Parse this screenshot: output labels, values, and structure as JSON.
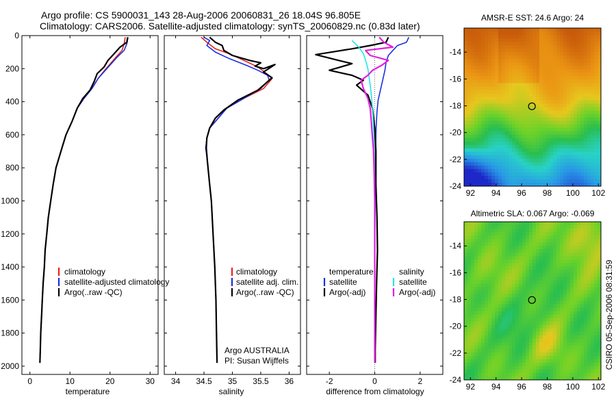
{
  "header": {
    "line1": "Argo profile: CS 5900031_143 28-Aug-2006 20060831_26 18.04S 96.805E",
    "line2": "Climatology: CARS2006. Satellite-adjusted climatology: synTS_20060829.nc (0.83d later)"
  },
  "side_credit": "CSIRO 05-Sep-2006 08:31:59",
  "colors": {
    "climatology": "#e8201a",
    "satellite": "#1a2ee0",
    "argo": "#000000",
    "sat_diff": "#22e4e6",
    "argo_diff": "#e21ee0"
  },
  "chart_data": [
    {
      "type": "line",
      "xlabel": "temperature",
      "xlim": [
        -2,
        32
      ],
      "ylim": [
        0,
        2050
      ],
      "y_inverted": true,
      "x_ticks": [
        "0",
        "10",
        "20",
        "30"
      ],
      "y_ticks": [
        "0",
        "200",
        "400",
        "600",
        "800",
        "1000",
        "1200",
        "1400",
        "1600",
        "1800",
        "2000"
      ],
      "legend": [
        "climatology",
        "satellite-adjusted climatology",
        "Argo(..raw -QC)"
      ],
      "series": [
        {
          "name": "climatology",
          "color": "#e8201a",
          "points": [
            [
              23.8,
              10
            ],
            [
              23.5,
              50
            ],
            [
              23.0,
              90
            ],
            [
              21.5,
              130
            ],
            [
              19.0,
              200
            ],
            [
              17.0,
              260
            ],
            [
              15.5,
              320
            ],
            [
              13.5,
              380
            ],
            [
              11.8,
              440
            ],
            [
              10.5,
              520
            ],
            [
              9.0,
              600
            ],
            [
              8.0,
              680
            ],
            [
              6.5,
              800
            ],
            [
              5.8,
              900
            ],
            [
              5.2,
              1000
            ],
            [
              4.6,
              1100
            ],
            [
              4.2,
              1200
            ],
            [
              3.8,
              1300
            ],
            [
              3.6,
              1400
            ],
            [
              3.3,
              1500
            ],
            [
              3.1,
              1600
            ],
            [
              2.9,
              1700
            ],
            [
              2.7,
              1800
            ],
            [
              2.6,
              1900
            ],
            [
              2.5,
              1980
            ]
          ]
        },
        {
          "name": "satellite-adjusted climatology",
          "color": "#1a2ee0",
          "points": [
            [
              24.5,
              10
            ],
            [
              24.2,
              50
            ],
            [
              23.5,
              90
            ],
            [
              21.8,
              130
            ],
            [
              19.2,
              200
            ],
            [
              17.0,
              260
            ],
            [
              15.5,
              320
            ],
            [
              13.5,
              380
            ],
            [
              11.8,
              440
            ],
            [
              10.5,
              520
            ],
            [
              9.0,
              600
            ],
            [
              8.0,
              680
            ],
            [
              6.5,
              800
            ],
            [
              5.8,
              900
            ],
            [
              5.2,
              1000
            ],
            [
              4.6,
              1100
            ],
            [
              4.2,
              1200
            ],
            [
              3.8,
              1300
            ],
            [
              3.6,
              1400
            ],
            [
              3.3,
              1500
            ],
            [
              3.1,
              1600
            ],
            [
              2.9,
              1700
            ],
            [
              2.7,
              1800
            ],
            [
              2.6,
              1900
            ],
            [
              2.5,
              1980
            ]
          ]
        },
        {
          "name": "Argo(..raw -QC)",
          "color": "#000000",
          "points": [
            [
              24.4,
              10
            ],
            [
              24.2,
              40
            ],
            [
              22.5,
              70
            ],
            [
              21.0,
              110
            ],
            [
              19.5,
              150
            ],
            [
              18.5,
              190
            ],
            [
              16.8,
              230
            ],
            [
              16.0,
              280
            ],
            [
              15.0,
              330
            ],
            [
              13.2,
              380
            ],
            [
              11.8,
              440
            ],
            [
              10.5,
              520
            ],
            [
              9.0,
              600
            ],
            [
              8.0,
              680
            ],
            [
              6.5,
              800
            ],
            [
              5.8,
              900
            ],
            [
              5.2,
              1000
            ],
            [
              4.6,
              1100
            ],
            [
              4.2,
              1200
            ],
            [
              3.8,
              1300
            ],
            [
              3.6,
              1400
            ],
            [
              3.3,
              1500
            ],
            [
              3.1,
              1600
            ],
            [
              2.9,
              1700
            ],
            [
              2.7,
              1800
            ],
            [
              2.6,
              1900
            ],
            [
              2.5,
              1980
            ]
          ]
        }
      ]
    },
    {
      "type": "line",
      "xlabel": "salinity",
      "xlim": [
        33.8,
        36.2
      ],
      "ylim": [
        0,
        2050
      ],
      "y_inverted": true,
      "x_ticks": [
        "34",
        "34.5",
        "35",
        "35.5",
        "36"
      ],
      "y_ticks": [],
      "legend": [
        "climatology",
        "satellite adj. clim.",
        "Argo(..raw -QC)"
      ],
      "annotation": [
        "Argo AUSTRALIA",
        "PI: Susan Wijffels"
      ],
      "series": [
        {
          "name": "climatology",
          "color": "#e8201a",
          "points": [
            [
              34.45,
              10
            ],
            [
              34.55,
              40
            ],
            [
              34.7,
              80
            ],
            [
              34.95,
              110
            ],
            [
              35.2,
              150
            ],
            [
              35.45,
              190
            ],
            [
              35.6,
              230
            ],
            [
              35.7,
              260
            ],
            [
              35.55,
              320
            ],
            [
              35.2,
              380
            ],
            [
              34.9,
              440
            ],
            [
              34.75,
              500
            ],
            [
              34.6,
              560
            ],
            [
              34.55,
              620
            ],
            [
              34.54,
              680
            ],
            [
              34.56,
              760
            ],
            [
              34.6,
              900
            ],
            [
              34.63,
              1000
            ],
            [
              34.66,
              1200
            ],
            [
              34.69,
              1400
            ],
            [
              34.71,
              1600
            ],
            [
              34.72,
              1800
            ],
            [
              34.73,
              1980
            ]
          ]
        },
        {
          "name": "satellite adj. clim.",
          "color": "#1a2ee0",
          "points": [
            [
              34.5,
              10
            ],
            [
              34.6,
              30
            ],
            [
              34.55,
              60
            ],
            [
              34.7,
              100
            ],
            [
              34.95,
              140
            ],
            [
              35.25,
              180
            ],
            [
              35.45,
              210
            ],
            [
              35.62,
              240
            ],
            [
              35.65,
              270
            ],
            [
              35.5,
              320
            ],
            [
              35.2,
              380
            ],
            [
              34.9,
              440
            ],
            [
              34.75,
              500
            ],
            [
              34.6,
              560
            ],
            [
              34.55,
              620
            ],
            [
              34.53,
              680
            ],
            [
              34.56,
              760
            ],
            [
              34.6,
              900
            ],
            [
              34.63,
              1000
            ],
            [
              34.66,
              1200
            ],
            [
              34.69,
              1400
            ],
            [
              34.71,
              1600
            ],
            [
              34.72,
              1800
            ],
            [
              34.73,
              1980
            ]
          ]
        },
        {
          "name": "Argo(..raw -QC)",
          "color": "#000000",
          "points": [
            [
              34.6,
              10
            ],
            [
              34.7,
              40
            ],
            [
              34.82,
              60
            ],
            [
              34.85,
              90
            ],
            [
              35.0,
              120
            ],
            [
              35.3,
              150
            ],
            [
              35.5,
              165
            ],
            [
              35.4,
              185
            ],
            [
              35.55,
              200
            ],
            [
              35.75,
              175
            ],
            [
              35.55,
              220
            ],
            [
              35.7,
              255
            ],
            [
              35.45,
              330
            ],
            [
              35.1,
              390
            ],
            [
              34.85,
              450
            ],
            [
              34.7,
              500
            ],
            [
              34.6,
              560
            ],
            [
              34.55,
              620
            ],
            [
              34.54,
              680
            ],
            [
              34.56,
              760
            ],
            [
              34.6,
              900
            ],
            [
              34.63,
              1000
            ],
            [
              34.66,
              1200
            ],
            [
              34.69,
              1400
            ],
            [
              34.71,
              1600
            ],
            [
              34.72,
              1800
            ],
            [
              34.73,
              1980
            ]
          ]
        }
      ]
    },
    {
      "type": "line",
      "xlabel": "difference from climatology",
      "xlim": [
        -3,
        3
      ],
      "ylim": [
        0,
        2050
      ],
      "y_inverted": true,
      "x_ticks": [
        "-2",
        "0",
        "2"
      ],
      "y_ticks": [],
      "legend_header": [
        "temperature",
        "salinity"
      ],
      "legend": [
        "satellite",
        "Argo(-adj)",
        "satellite",
        "Argo(-adj)"
      ],
      "series": [
        {
          "name": "satellite",
          "color": "#1a2ee0",
          "points": [
            [
              1.5,
              10
            ],
            [
              1.4,
              40
            ],
            [
              1.0,
              60
            ],
            [
              0.8,
              90
            ],
            [
              0.6,
              120
            ],
            [
              0.5,
              160
            ],
            [
              0.45,
              210
            ],
            [
              0.35,
              270
            ],
            [
              0.25,
              330
            ],
            [
              0.15,
              390
            ],
            [
              0.1,
              460
            ],
            [
              0.06,
              560
            ],
            [
              0.04,
              700
            ],
            [
              0.02,
              900
            ],
            [
              0.01,
              1200
            ],
            [
              0.0,
              1600
            ],
            [
              0.0,
              1980
            ]
          ]
        },
        {
          "name": "Argo(-adj)",
          "color": "#000000",
          "points": [
            [
              0.6,
              10
            ],
            [
              0.5,
              40
            ],
            [
              -0.2,
              60
            ],
            [
              -1.0,
              80
            ],
            [
              -2.6,
              115
            ],
            [
              -1.6,
              150
            ],
            [
              -1.0,
              170
            ],
            [
              -2.0,
              210
            ],
            [
              -1.0,
              240
            ],
            [
              -0.5,
              270
            ],
            [
              -0.8,
              300
            ],
            [
              -0.3,
              360
            ],
            [
              -0.1,
              440
            ],
            [
              0.0,
              560
            ],
            [
              0.05,
              700
            ],
            [
              0.05,
              900
            ],
            [
              0.1,
              1100
            ],
            [
              0.12,
              1300
            ],
            [
              0.08,
              1500
            ],
            [
              0.05,
              1700
            ],
            [
              0.02,
              1900
            ],
            [
              0.02,
              1980
            ]
          ]
        },
        {
          "name": "satellite",
          "color": "#22e4e6",
          "points": [
            [
              -1.0,
              30
            ],
            [
              -0.7,
              70
            ],
            [
              -0.5,
              110
            ],
            [
              -0.4,
              150
            ],
            [
              -0.3,
              200
            ],
            [
              -0.25,
              250
            ],
            [
              -0.2,
              300
            ],
            [
              -0.15,
              360
            ],
            [
              -0.1,
              440
            ],
            [
              -0.05,
              560
            ],
            [
              -0.02,
              700
            ],
            [
              0.0,
              900
            ],
            [
              0.0,
              1200
            ],
            [
              0.0,
              1600
            ],
            [
              0.0,
              1980
            ]
          ]
        },
        {
          "name": "Argo(-adj)",
          "color": "#e21ee0",
          "points": [
            [
              0.2,
              10
            ],
            [
              0.4,
              40
            ],
            [
              0.8,
              70
            ],
            [
              -0.4,
              90
            ],
            [
              -0.2,
              120
            ],
            [
              0.6,
              150
            ],
            [
              0.3,
              180
            ],
            [
              -0.1,
              210
            ],
            [
              -0.3,
              240
            ],
            [
              -0.6,
              270
            ],
            [
              -0.5,
              320
            ],
            [
              -0.3,
              380
            ],
            [
              -0.2,
              440
            ],
            [
              -0.15,
              520
            ],
            [
              -0.1,
              620
            ],
            [
              -0.05,
              700
            ],
            [
              -0.02,
              850
            ],
            [
              0.0,
              1000
            ],
            [
              0.0,
              1300
            ],
            [
              0.0,
              1600
            ],
            [
              0.0,
              1980
            ]
          ]
        }
      ]
    },
    {
      "type": "heatmap",
      "title": "AMSR-E SST: 24.6 Argo: 24",
      "xlim": [
        91.5,
        102.2
      ],
      "ylim": [
        -24,
        -12.2
      ],
      "x_ticks": [
        "92",
        "94",
        "96",
        "98",
        "100",
        "102"
      ],
      "y_ticks": [
        "-14",
        "-16",
        "-18",
        "-20",
        "-22",
        "-24"
      ],
      "marker": {
        "lon": 96.805,
        "lat": -18.04
      }
    },
    {
      "type": "heatmap",
      "title": "Altimetric SLA: 0.067 Argo: -0.069",
      "xlim": [
        91.5,
        102.2
      ],
      "ylim": [
        -24,
        -12.2
      ],
      "x_ticks": [
        "92",
        "94",
        "96",
        "98",
        "100",
        "102"
      ],
      "y_ticks": [
        "-14",
        "-16",
        "-18",
        "-20",
        "-22",
        "-24"
      ],
      "marker": {
        "lon": 96.805,
        "lat": -18.04
      }
    }
  ]
}
